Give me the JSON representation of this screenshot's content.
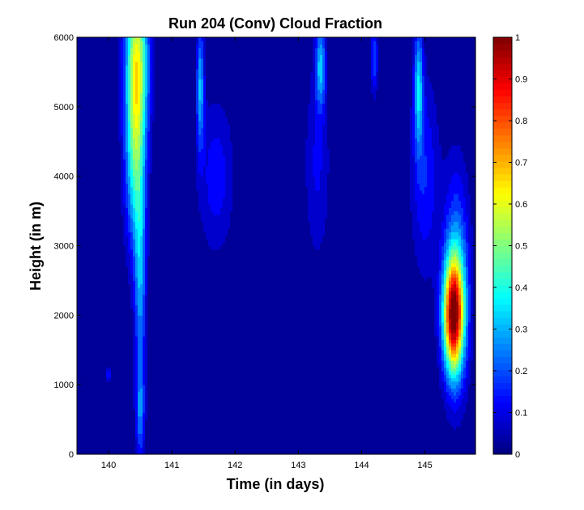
{
  "chart_data": {
    "type": "heatmap",
    "subtype": "filled-contour",
    "title": "Run 204 (Conv) Cloud Fraction",
    "xlabel": "Time (in days)",
    "ylabel": "Height (in m)",
    "xlim": [
      139.5,
      145.8
    ],
    "ylim": [
      0,
      6000
    ],
    "xticks": [
      140,
      141,
      142,
      143,
      144,
      145
    ],
    "yticks": [
      0,
      1000,
      2000,
      3000,
      4000,
      5000,
      6000
    ],
    "colorbar": {
      "range": [
        0,
        1
      ],
      "ticks": [
        0,
        0.1,
        0.2,
        0.3,
        0.4,
        0.5,
        0.6,
        0.7,
        0.8,
        0.9,
        1
      ],
      "tick_labels": [
        "0",
        "0.1",
        "0.2",
        "0.3",
        "0.4",
        "0.5",
        "0.6",
        "0.7",
        "0.8",
        "0.9",
        "1"
      ],
      "colormap": "jet"
    },
    "grid": false,
    "features": [
      {
        "x": 140.45,
        "y": 5700,
        "sx": 0.18,
        "sy": 1200,
        "peak": 0.55
      },
      {
        "x": 140.42,
        "y": 4200,
        "sx": 0.16,
        "sy": 1300,
        "peak": 0.36
      },
      {
        "x": 140.5,
        "y": 2500,
        "sx": 0.09,
        "sy": 1500,
        "peak": 0.27
      },
      {
        "x": 140.5,
        "y": 600,
        "sx": 0.07,
        "sy": 700,
        "peak": 0.22
      },
      {
        "x": 140.0,
        "y": 1150,
        "sx": 0.05,
        "sy": 100,
        "peak": 0.18
      },
      {
        "x": 141.45,
        "y": 5300,
        "sx": 0.06,
        "sy": 900,
        "peak": 0.3
      },
      {
        "x": 141.7,
        "y": 4000,
        "sx": 0.28,
        "sy": 1100,
        "peak": 0.13
      },
      {
        "x": 143.35,
        "y": 5600,
        "sx": 0.08,
        "sy": 600,
        "peak": 0.3
      },
      {
        "x": 143.3,
        "y": 4200,
        "sx": 0.2,
        "sy": 1400,
        "peak": 0.11
      },
      {
        "x": 144.2,
        "y": 5700,
        "sx": 0.06,
        "sy": 500,
        "peak": 0.2
      },
      {
        "x": 144.9,
        "y": 5300,
        "sx": 0.07,
        "sy": 900,
        "peak": 0.32
      },
      {
        "x": 145.0,
        "y": 4000,
        "sx": 0.22,
        "sy": 1400,
        "peak": 0.15
      },
      {
        "x": 145.45,
        "y": 2000,
        "sx": 0.16,
        "sy": 800,
        "peak": 0.85
      },
      {
        "x": 145.5,
        "y": 2500,
        "sx": 0.2,
        "sy": 1500,
        "peak": 0.28
      }
    ]
  }
}
